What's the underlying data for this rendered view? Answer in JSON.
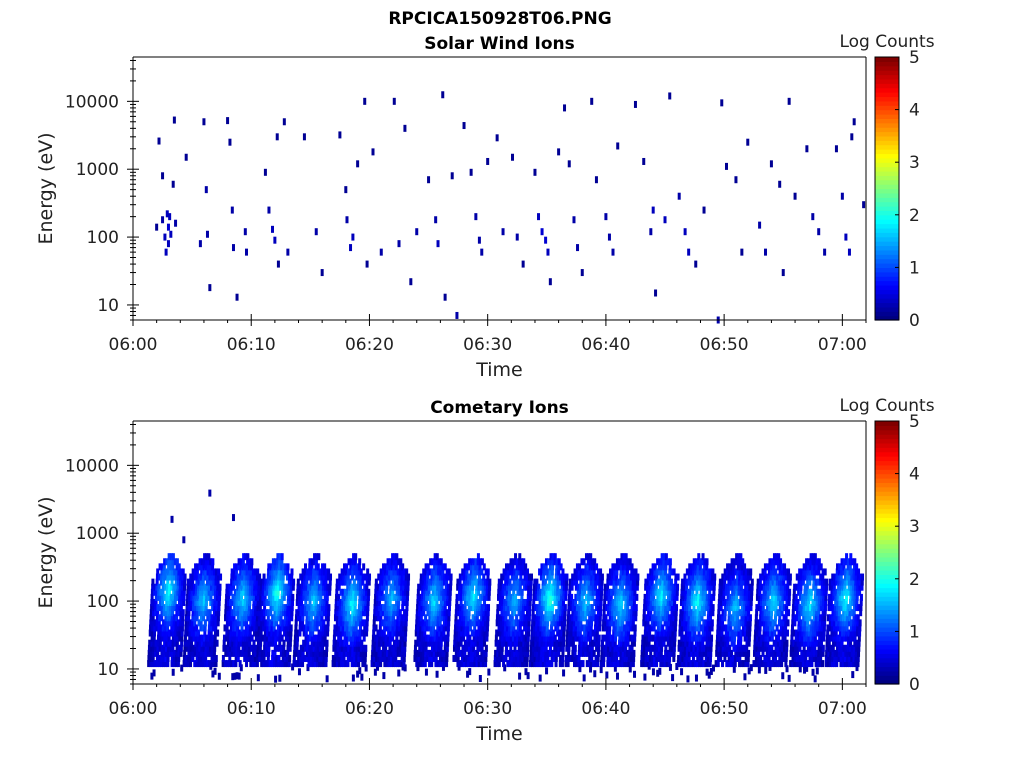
{
  "figure": {
    "title": "RPCICA150928T06.PNG"
  },
  "chart_data": [
    {
      "type": "heatmap",
      "title": "Solar Wind Ions",
      "xlabel": "Time",
      "ylabel": "Energy (eV)",
      "x_ticks": [
        "06:00",
        "06:10",
        "06:20",
        "06:30",
        "06:40",
        "06:50",
        "07:00"
      ],
      "y_ticks": [
        "10",
        "100",
        "1000",
        "10000"
      ],
      "y_scale": "log",
      "ylim": [
        6,
        45000
      ],
      "xlim_minutes": [
        0,
        62
      ],
      "colorbar": {
        "label": "Log Counts",
        "range": [
          0,
          5
        ],
        "ticks": [
          "0",
          "1",
          "2",
          "3",
          "4",
          "5"
        ],
        "colormap": "jet"
      },
      "cells": [
        {
          "t": 2.0,
          "e": 140,
          "v": 0.1
        },
        {
          "t": 2.2,
          "e": 2600,
          "v": 0.1
        },
        {
          "t": 2.5,
          "e": 800,
          "v": 0.1
        },
        {
          "t": 2.5,
          "e": 180,
          "v": 0.2
        },
        {
          "t": 2.7,
          "e": 100,
          "v": 0.3
        },
        {
          "t": 2.8,
          "e": 60,
          "v": 0.3
        },
        {
          "t": 2.9,
          "e": 220,
          "v": 0.3
        },
        {
          "t": 3.0,
          "e": 140,
          "v": 0.4
        },
        {
          "t": 3.0,
          "e": 80,
          "v": 0.3
        },
        {
          "t": 3.1,
          "e": 200,
          "v": 0.3
        },
        {
          "t": 3.2,
          "e": 110,
          "v": 0.3
        },
        {
          "t": 3.4,
          "e": 600,
          "v": 0.1
        },
        {
          "t": 3.5,
          "e": 5300,
          "v": 0.1
        },
        {
          "t": 3.6,
          "e": 160,
          "v": 0.2
        },
        {
          "t": 4.5,
          "e": 1500,
          "v": 0.1
        },
        {
          "t": 5.7,
          "e": 80,
          "v": 0.2
        },
        {
          "t": 6.0,
          "e": 5000,
          "v": 0.1
        },
        {
          "t": 6.2,
          "e": 500,
          "v": 0.2
        },
        {
          "t": 6.3,
          "e": 110,
          "v": 0.2
        },
        {
          "t": 6.5,
          "e": 18,
          "v": 0.1
        },
        {
          "t": 8.0,
          "e": 5200,
          "v": 0.1
        },
        {
          "t": 8.2,
          "e": 2500,
          "v": 0.1
        },
        {
          "t": 8.4,
          "e": 250,
          "v": 0.2
        },
        {
          "t": 8.5,
          "e": 70,
          "v": 0.2
        },
        {
          "t": 8.8,
          "e": 13,
          "v": 0.1
        },
        {
          "t": 9.5,
          "e": 120,
          "v": 0.2
        },
        {
          "t": 9.6,
          "e": 60,
          "v": 0.2
        },
        {
          "t": 11.2,
          "e": 900,
          "v": 0.1
        },
        {
          "t": 11.5,
          "e": 250,
          "v": 0.2
        },
        {
          "t": 11.8,
          "e": 130,
          "v": 0.3
        },
        {
          "t": 12.0,
          "e": 90,
          "v": 0.3
        },
        {
          "t": 12.2,
          "e": 3000,
          "v": 0.1
        },
        {
          "t": 12.3,
          "e": 40,
          "v": 0.1
        },
        {
          "t": 12.8,
          "e": 5000,
          "v": 0.1
        },
        {
          "t": 13.1,
          "e": 60,
          "v": 0.2
        },
        {
          "t": 14.5,
          "e": 3000,
          "v": 0.1
        },
        {
          "t": 15.5,
          "e": 120,
          "v": 0.2
        },
        {
          "t": 16.0,
          "e": 30,
          "v": 0.1
        },
        {
          "t": 17.5,
          "e": 3200,
          "v": 0.1
        },
        {
          "t": 18.0,
          "e": 500,
          "v": 0.1
        },
        {
          "t": 18.1,
          "e": 180,
          "v": 0.2
        },
        {
          "t": 18.4,
          "e": 70,
          "v": 0.3
        },
        {
          "t": 18.6,
          "e": 100,
          "v": 0.3
        },
        {
          "t": 19.0,
          "e": 1200,
          "v": 0.1
        },
        {
          "t": 19.6,
          "e": 10000,
          "v": 0.1
        },
        {
          "t": 19.8,
          "e": 40,
          "v": 0.1
        },
        {
          "t": 20.3,
          "e": 1800,
          "v": 0.1
        },
        {
          "t": 21.0,
          "e": 60,
          "v": 0.2
        },
        {
          "t": 22.1,
          "e": 10000,
          "v": 0.1
        },
        {
          "t": 22.5,
          "e": 80,
          "v": 0.2
        },
        {
          "t": 23.0,
          "e": 4000,
          "v": 0.1
        },
        {
          "t": 23.5,
          "e": 22,
          "v": 0.1
        },
        {
          "t": 24.0,
          "e": 120,
          "v": 0.2
        },
        {
          "t": 25.0,
          "e": 700,
          "v": 0.1
        },
        {
          "t": 25.6,
          "e": 180,
          "v": 0.2
        },
        {
          "t": 25.8,
          "e": 80,
          "v": 0.3
        },
        {
          "t": 26.2,
          "e": 12500,
          "v": 0.1
        },
        {
          "t": 26.4,
          "e": 13,
          "v": 0.1
        },
        {
          "t": 27.0,
          "e": 800,
          "v": 0.1
        },
        {
          "t": 27.4,
          "e": 7,
          "v": 0.2
        },
        {
          "t": 28.0,
          "e": 4400,
          "v": 0.1
        },
        {
          "t": 28.6,
          "e": 900,
          "v": 0.1
        },
        {
          "t": 29.0,
          "e": 200,
          "v": 0.2
        },
        {
          "t": 29.3,
          "e": 90,
          "v": 0.2
        },
        {
          "t": 29.5,
          "e": 60,
          "v": 0.2
        },
        {
          "t": 30.0,
          "e": 1300,
          "v": 0.1
        },
        {
          "t": 30.8,
          "e": 2900,
          "v": 0.1
        },
        {
          "t": 31.3,
          "e": 120,
          "v": 0.2
        },
        {
          "t": 32.1,
          "e": 1500,
          "v": 0.1
        },
        {
          "t": 32.5,
          "e": 100,
          "v": 0.2
        },
        {
          "t": 33.0,
          "e": 40,
          "v": 0.1
        },
        {
          "t": 34.0,
          "e": 900,
          "v": 0.1
        },
        {
          "t": 34.3,
          "e": 200,
          "v": 0.3
        },
        {
          "t": 34.6,
          "e": 120,
          "v": 0.4
        },
        {
          "t": 34.9,
          "e": 90,
          "v": 0.4
        },
        {
          "t": 35.1,
          "e": 60,
          "v": 0.3
        },
        {
          "t": 35.3,
          "e": 22,
          "v": 0.1
        },
        {
          "t": 36.0,
          "e": 1800,
          "v": 0.1
        },
        {
          "t": 36.5,
          "e": 8000,
          "v": 0.1
        },
        {
          "t": 36.9,
          "e": 1200,
          "v": 0.1
        },
        {
          "t": 37.3,
          "e": 180,
          "v": 0.2
        },
        {
          "t": 37.6,
          "e": 70,
          "v": 0.2
        },
        {
          "t": 38.0,
          "e": 30,
          "v": 0.1
        },
        {
          "t": 38.8,
          "e": 10000,
          "v": 0.1
        },
        {
          "t": 39.2,
          "e": 700,
          "v": 0.1
        },
        {
          "t": 40.0,
          "e": 200,
          "v": 0.2
        },
        {
          "t": 40.3,
          "e": 100,
          "v": 0.2
        },
        {
          "t": 40.6,
          "e": 60,
          "v": 0.2
        },
        {
          "t": 41.0,
          "e": 2200,
          "v": 0.1
        },
        {
          "t": 42.5,
          "e": 9000,
          "v": 0.1
        },
        {
          "t": 43.2,
          "e": 1300,
          "v": 0.1
        },
        {
          "t": 43.8,
          "e": 120,
          "v": 0.2
        },
        {
          "t": 44.0,
          "e": 250,
          "v": 0.3
        },
        {
          "t": 44.2,
          "e": 15,
          "v": 0.1
        },
        {
          "t": 45.0,
          "e": 180,
          "v": 0.3
        },
        {
          "t": 45.4,
          "e": 12000,
          "v": 0.1
        },
        {
          "t": 46.2,
          "e": 400,
          "v": 0.2
        },
        {
          "t": 46.7,
          "e": 120,
          "v": 0.3
        },
        {
          "t": 47.0,
          "e": 60,
          "v": 0.3
        },
        {
          "t": 47.6,
          "e": 40,
          "v": 0.1
        },
        {
          "t": 48.3,
          "e": 250,
          "v": 0.1
        },
        {
          "t": 49.5,
          "e": 6,
          "v": 0.2
        },
        {
          "t": 49.8,
          "e": 9500,
          "v": 0.1
        },
        {
          "t": 50.2,
          "e": 1100,
          "v": 0.1
        },
        {
          "t": 51.0,
          "e": 700,
          "v": 0.1
        },
        {
          "t": 51.5,
          "e": 60,
          "v": 0.1
        },
        {
          "t": 52.0,
          "e": 2500,
          "v": 0.1
        },
        {
          "t": 53.0,
          "e": 150,
          "v": 0.2
        },
        {
          "t": 53.5,
          "e": 60,
          "v": 0.2
        },
        {
          "t": 54.0,
          "e": 1200,
          "v": 0.1
        },
        {
          "t": 54.7,
          "e": 600,
          "v": 0.1
        },
        {
          "t": 55.0,
          "e": 30,
          "v": 0.1
        },
        {
          "t": 55.5,
          "e": 10000,
          "v": 0.1
        },
        {
          "t": 56.0,
          "e": 400,
          "v": 0.1
        },
        {
          "t": 57.0,
          "e": 2000,
          "v": 0.1
        },
        {
          "t": 57.5,
          "e": 200,
          "v": 0.2
        },
        {
          "t": 58.0,
          "e": 120,
          "v": 0.2
        },
        {
          "t": 58.5,
          "e": 60,
          "v": 0.2
        },
        {
          "t": 59.5,
          "e": 2000,
          "v": 0.1
        },
        {
          "t": 60.0,
          "e": 400,
          "v": 0.2
        },
        {
          "t": 60.3,
          "e": 100,
          "v": 0.3
        },
        {
          "t": 60.6,
          "e": 60,
          "v": 0.3
        },
        {
          "t": 60.8,
          "e": 3000,
          "v": 0.1
        },
        {
          "t": 61.0,
          "e": 5000,
          "v": 0.1
        },
        {
          "t": 61.8,
          "e": 300,
          "v": 0.1
        }
      ]
    },
    {
      "type": "heatmap",
      "title": "Cometary Ions",
      "xlabel": "Time",
      "ylabel": "Energy (eV)",
      "x_ticks": [
        "06:00",
        "06:10",
        "06:20",
        "06:30",
        "06:40",
        "06:50",
        "07:00"
      ],
      "y_ticks": [
        "10",
        "100",
        "1000",
        "10000"
      ],
      "y_scale": "log",
      "ylim": [
        6,
        45000
      ],
      "xlim_minutes": [
        0,
        62
      ],
      "colorbar": {
        "label": "Log Counts",
        "range": [
          0,
          5
        ],
        "ticks": [
          "0",
          "1",
          "2",
          "3",
          "4",
          "5"
        ],
        "colormap": "jet"
      },
      "bursts": [
        {
          "t": 3.0,
          "e_peak": 140,
          "v_peak": 1.7
        },
        {
          "t": 6.0,
          "e_peak": 100,
          "v_peak": 1.4
        },
        {
          "t": 9.3,
          "e_peak": 110,
          "v_peak": 1.5
        },
        {
          "t": 12.2,
          "e_peak": 130,
          "v_peak": 1.8
        },
        {
          "t": 15.3,
          "e_peak": 100,
          "v_peak": 1.4
        },
        {
          "t": 18.6,
          "e_peak": 90,
          "v_peak": 1.7
        },
        {
          "t": 21.9,
          "e_peak": 110,
          "v_peak": 1.3
        },
        {
          "t": 25.5,
          "e_peak": 100,
          "v_peak": 1.5
        },
        {
          "t": 28.8,
          "e_peak": 120,
          "v_peak": 1.6
        },
        {
          "t": 32.3,
          "e_peak": 100,
          "v_peak": 1.3
        },
        {
          "t": 35.3,
          "e_peak": 110,
          "v_peak": 1.9
        },
        {
          "t": 38.3,
          "e_peak": 100,
          "v_peak": 1.4
        },
        {
          "t": 41.3,
          "e_peak": 90,
          "v_peak": 1.5
        },
        {
          "t": 44.7,
          "e_peak": 120,
          "v_peak": 1.6
        },
        {
          "t": 47.8,
          "e_peak": 100,
          "v_peak": 1.7
        },
        {
          "t": 51.0,
          "e_peak": 80,
          "v_peak": 1.3
        },
        {
          "t": 54.2,
          "e_peak": 100,
          "v_peak": 1.5
        },
        {
          "t": 57.3,
          "e_peak": 90,
          "v_peak": 1.6
        },
        {
          "t": 60.3,
          "e_peak": 110,
          "v_peak": 1.7
        }
      ],
      "cells": [
        {
          "t": 3.3,
          "e": 1600,
          "v": 0.2
        },
        {
          "t": 4.3,
          "e": 800,
          "v": 0.2
        },
        {
          "t": 6.5,
          "e": 3900,
          "v": 0.2
        },
        {
          "t": 8.5,
          "e": 1700,
          "v": 0.2
        }
      ]
    }
  ]
}
